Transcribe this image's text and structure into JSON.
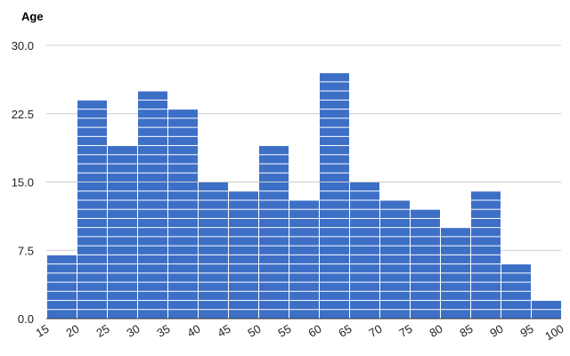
{
  "chart_data": {
    "type": "bar",
    "title": "Age",
    "xlabel": "",
    "ylabel": "",
    "x_ticks": [
      "15",
      "20",
      "25",
      "30",
      "35",
      "40",
      "45",
      "50",
      "55",
      "60",
      "65",
      "70",
      "75",
      "80",
      "85",
      "90",
      "95",
      "100"
    ],
    "bins": [
      {
        "start": 15,
        "end": 20,
        "value": 7
      },
      {
        "start": 20,
        "end": 25,
        "value": 24
      },
      {
        "start": 25,
        "end": 30,
        "value": 19
      },
      {
        "start": 30,
        "end": 35,
        "value": 25
      },
      {
        "start": 35,
        "end": 40,
        "value": 23
      },
      {
        "start": 40,
        "end": 45,
        "value": 15
      },
      {
        "start": 45,
        "end": 50,
        "value": 14
      },
      {
        "start": 50,
        "end": 55,
        "value": 19
      },
      {
        "start": 55,
        "end": 60,
        "value": 13
      },
      {
        "start": 60,
        "end": 65,
        "value": 27
      },
      {
        "start": 65,
        "end": 70,
        "value": 15
      },
      {
        "start": 70,
        "end": 75,
        "value": 13
      },
      {
        "start": 75,
        "end": 80,
        "value": 12
      },
      {
        "start": 80,
        "end": 85,
        "value": 10
      },
      {
        "start": 85,
        "end": 90,
        "value": 14
      },
      {
        "start": 90,
        "end": 95,
        "value": 6
      },
      {
        "start": 95,
        "end": 100,
        "value": 2
      }
    ],
    "y_ticks": [
      "0.0",
      "7.5",
      "15.0",
      "22.5",
      "30.0"
    ],
    "ylim": [
      0,
      30
    ],
    "xlim": [
      15,
      100
    ],
    "grid": true,
    "bar_color": "#3d6fc6",
    "grid_color": "#cccccc"
  }
}
